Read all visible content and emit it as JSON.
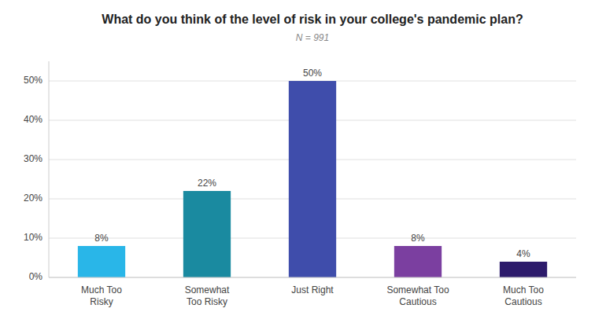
{
  "chart_data": {
    "type": "bar",
    "title": "What do you think of the level of risk in your college's pandemic plan?",
    "subtitle": "N = 991",
    "categories": [
      "Much Too\nRisky",
      "Somewhat\nToo Risky",
      "Just Right",
      "Somewhat Too\nCautious",
      "Much Too\nCautious"
    ],
    "values": [
      8,
      22,
      50,
      8,
      4
    ],
    "value_labels": [
      "8%",
      "22%",
      "50%",
      "8%",
      "4%"
    ],
    "data_labels": true,
    "colors": [
      "#29B6E8",
      "#1A8AA0",
      "#3F4DAB",
      "#7B3FA0",
      "#2D1B6B"
    ],
    "ylim": [
      0,
      55
    ],
    "yticks": [
      {
        "value": 0,
        "label": "0%"
      },
      {
        "value": 10,
        "label": "10%"
      },
      {
        "value": 20,
        "label": "20%"
      },
      {
        "value": 30,
        "label": "30%"
      },
      {
        "value": 40,
        "label": "40%"
      },
      {
        "value": 50,
        "label": "50%"
      }
    ],
    "grid": true
  }
}
